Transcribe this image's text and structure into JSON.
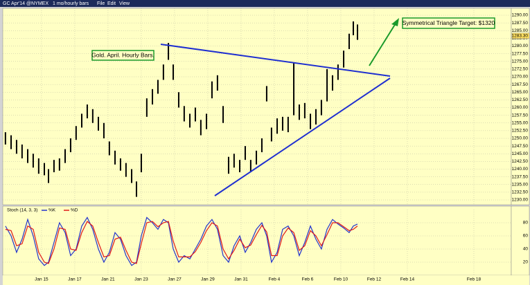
{
  "toolbar": {
    "symbol": "GC Apr'14 @NYMEX",
    "interval": "1 mo/hourly bars",
    "menus": [
      "File",
      "Edit",
      "View"
    ]
  },
  "chart_data": [
    {
      "type": "range-bar",
      "annotations": [
        "Gold. April. Hourly Bars.",
        "Symmetrical Triangle Target: $1320"
      ],
      "x": [
        -2.17,
        -1.83,
        -1.5,
        -1.17,
        -0.83,
        -0.5,
        -0.17,
        0.17,
        0.42,
        0.75,
        1.08,
        1.42,
        1.75,
        2.08,
        2.42,
        2.75,
        3.08,
        3.42,
        3.75,
        4.08,
        4.42,
        4.75,
        5.08,
        5.42,
        5.71,
        6.0,
        6.33,
        6.67,
        7.0,
        7.33,
        7.63,
        7.92,
        8.25,
        8.58,
        8.92,
        9.25,
        9.58,
        9.92,
        10.25,
        10.58,
        10.92,
        11.25,
        11.58,
        11.92,
        12.25,
        12.58,
        12.92,
        13.25,
        13.54,
        13.83,
        14.17,
        14.5,
        14.83,
        15.17,
        15.5,
        15.83,
        16.17,
        16.5,
        16.83,
        17.17,
        17.5,
        17.83,
        18.17,
        18.5,
        18.75,
        19.0
      ],
      "high": [
        1252,
        1251,
        1249.5,
        1248,
        1246.5,
        1245,
        1243.5,
        1242,
        1240,
        1243,
        1243.5,
        1246.5,
        1250,
        1254,
        1258,
        1261,
        1259.5,
        1257,
        1255,
        1249,
        1246,
        1243.5,
        1242,
        1240,
        1236,
        1245,
        1263,
        1266,
        1269,
        1274,
        1281,
        1274,
        1265,
        1260.5,
        1258,
        1260,
        1256,
        1258,
        1268.5,
        1270.5,
        1260.5,
        1244,
        1245,
        1243,
        1247.5,
        1243,
        1246,
        1250,
        1267,
        1253.5,
        1256.5,
        1257,
        1257,
        1274.5,
        1261,
        1261.5,
        1258,
        1259.5,
        1262.5,
        1272.5,
        1270.5,
        1274,
        1278.5,
        1284,
        1288,
        1287
      ],
      "low": [
        1248,
        1246.5,
        1245,
        1243.5,
        1242,
        1240.5,
        1238.5,
        1238,
        1235.5,
        1239,
        1239.5,
        1242,
        1245.5,
        1249.5,
        1253.5,
        1256.5,
        1255,
        1252.5,
        1250,
        1244.5,
        1241.5,
        1239.5,
        1237.5,
        1235.5,
        1231,
        1239,
        1257,
        1261,
        1264.5,
        1269,
        1275.5,
        1269,
        1260,
        1255.5,
        1253.5,
        1255.5,
        1251,
        1253,
        1263,
        1265.5,
        1255,
        1238.5,
        1240.5,
        1239,
        1243,
        1239,
        1241.5,
        1245.5,
        1262,
        1249,
        1251.5,
        1252.5,
        1252,
        1257.5,
        1256,
        1256.5,
        1253,
        1254.5,
        1257.5,
        1262,
        1265.5,
        1269,
        1273,
        1279,
        1283.5,
        1282
      ],
      "color": "#000000",
      "last": {
        "value": 1283.3,
        "label": "1283.30"
      },
      "xlim": [
        -2.33,
        28.25
      ],
      "ylim": [
        1228.43,
        1292.25
      ],
      "yticks": [
        {
          "value": 1290,
          "label": "1290.00"
        },
        {
          "value": 1287.5,
          "label": "1287.50"
        },
        {
          "value": 1285,
          "label": "1285.00"
        },
        {
          "value": 1282.5,
          "label": "1282.50"
        },
        {
          "value": 1280,
          "label": "1280.00"
        },
        {
          "value": 1277.5,
          "label": "1277.50"
        },
        {
          "value": 1275,
          "label": "1275.00"
        },
        {
          "value": 1272.5,
          "label": "1272.50"
        },
        {
          "value": 1270,
          "label": "1270.00"
        },
        {
          "value": 1267.5,
          "label": "1267.50"
        },
        {
          "value": 1265,
          "label": "1265.00"
        },
        {
          "value": 1262.5,
          "label": "1262.50"
        },
        {
          "value": 1260,
          "label": "1260.00"
        },
        {
          "value": 1257.5,
          "label": "1257.50"
        },
        {
          "value": 1255,
          "label": "1255.00"
        },
        {
          "value": 1252.5,
          "label": "1252.50"
        },
        {
          "value": 1250,
          "label": "1250.00"
        },
        {
          "value": 1247.5,
          "label": "1247.50"
        },
        {
          "value": 1245,
          "label": "1245.00"
        },
        {
          "value": 1242.5,
          "label": "1242.50"
        },
        {
          "value": 1240,
          "label": "1240.00"
        },
        {
          "value": 1237.5,
          "label": "1237.50"
        },
        {
          "value": 1235,
          "label": "1235.00"
        },
        {
          "value": 1232.5,
          "label": "1232.50"
        },
        {
          "value": 1230,
          "label": "1230.00"
        }
      ],
      "xticks": [
        {
          "value": 0,
          "label": "Jan 15"
        },
        {
          "value": 2,
          "label": "Jan 17"
        },
        {
          "value": 4,
          "label": "Jan 21"
        },
        {
          "value": 6,
          "label": "Jan 23"
        },
        {
          "value": 8,
          "label": "Jan 27"
        },
        {
          "value": 10,
          "label": "Jan 29"
        },
        {
          "value": 12,
          "label": "Jan 31"
        },
        {
          "value": 14,
          "label": "Feb 4"
        },
        {
          "value": 16,
          "label": "Feb 6"
        },
        {
          "value": 18,
          "label": "Feb 10"
        },
        {
          "value": 20,
          "label": "Feb 12"
        },
        {
          "value": 22,
          "label": "Feb 14"
        },
        {
          "value": 26,
          "label": "Feb 18"
        }
      ],
      "grid": true
    },
    {
      "type": "line",
      "title": "Stoch (14, 3, 3)",
      "x": [
        -2.17,
        -1.83,
        -1.5,
        -1.17,
        -0.83,
        -0.5,
        -0.17,
        0.17,
        0.42,
        0.75,
        1.08,
        1.42,
        1.75,
        2.08,
        2.42,
        2.75,
        3.08,
        3.42,
        3.75,
        4.08,
        4.42,
        4.75,
        5.08,
        5.42,
        5.71,
        6.0,
        6.33,
        6.67,
        7.0,
        7.33,
        7.63,
        7.92,
        8.25,
        8.58,
        8.92,
        9.25,
        9.58,
        9.92,
        10.25,
        10.58,
        10.92,
        11.25,
        11.58,
        11.92,
        12.25,
        12.58,
        12.92,
        13.25,
        13.54,
        13.83,
        14.17,
        14.5,
        14.83,
        15.17,
        15.5,
        15.83,
        16.17,
        16.5,
        16.83,
        17.17,
        17.5,
        17.83,
        18.17,
        18.5,
        18.75,
        19.0
      ],
      "series": [
        {
          "name": "%K",
          "color": "#2233cc",
          "values": [
            75,
            60,
            35,
            55,
            85,
            60,
            25,
            15,
            20,
            50,
            80,
            65,
            30,
            40,
            75,
            88,
            70,
            40,
            20,
            35,
            65,
            55,
            30,
            15,
            20,
            60,
            88,
            80,
            70,
            85,
            80,
            40,
            20,
            30,
            25,
            40,
            55,
            75,
            85,
            70,
            30,
            20,
            45,
            60,
            35,
            50,
            70,
            80,
            60,
            20,
            35,
            70,
            75,
            60,
            30,
            50,
            75,
            55,
            40,
            70,
            85,
            78,
            72,
            65,
            75,
            78
          ]
        },
        {
          "name": "%D",
          "color": "#e01818",
          "values": [
            70,
            68,
            45,
            48,
            75,
            70,
            35,
            20,
            18,
            40,
            72,
            70,
            40,
            38,
            65,
            82,
            75,
            50,
            28,
            30,
            55,
            58,
            38,
            20,
            18,
            48,
            80,
            82,
            74,
            80,
            82,
            52,
            28,
            28,
            28,
            36,
            50,
            68,
            80,
            75,
            40,
            25,
            38,
            55,
            42,
            46,
            62,
            76,
            66,
            30,
            30,
            60,
            72,
            65,
            38,
            45,
            68,
            60,
            45,
            62,
            80,
            80,
            74,
            68,
            70,
            75
          ]
        }
      ],
      "xlim": [
        -2.33,
        28.25
      ],
      "ylim": [
        0,
        100
      ],
      "yticks": [
        20,
        40,
        60,
        80
      ],
      "grid": true
    }
  ]
}
